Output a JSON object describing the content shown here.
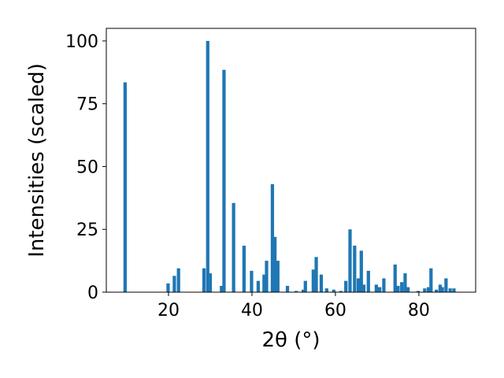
{
  "chart_data": {
    "type": "bar",
    "title": "",
    "xlabel": "2θ (°)",
    "ylabel": "Intensities (scaled)",
    "xlim": [
      5.1,
      93.6
    ],
    "ylim": [
      0,
      105
    ],
    "x_ticks": [
      20,
      40,
      60,
      80
    ],
    "y_ticks": [
      0,
      25,
      50,
      75,
      100
    ],
    "grid": false,
    "bar_color": "#1f77b4",
    "bar_width": 0.8,
    "series": [
      {
        "x": [
          9.6,
          19.9,
          21.4,
          22.4,
          28.5,
          29.4,
          30.0,
          32.7,
          33.3,
          35.6,
          38.1,
          39.9,
          41.5,
          42.9,
          43.5,
          44.9,
          45.5,
          46.2,
          48.5,
          50.6,
          52.3,
          52.8,
          54.7,
          55.4,
          56.6,
          57.9,
          59.6,
          61.3,
          62.5,
          63.5,
          64.6,
          65.5,
          66.2,
          66.8,
          67.9,
          69.8,
          70.6,
          71.6,
          74.3,
          75.0,
          75.9,
          76.7,
          77.4,
          79.8,
          81.4,
          82.3,
          82.9,
          84.2,
          85.1,
          85.6,
          86.5,
          87.5,
          88.4
        ],
        "values": [
          83.5,
          3.5,
          6.5,
          9.5,
          9.5,
          100,
          7.5,
          2.5,
          88.5,
          35.5,
          18.5,
          8.5,
          4.5,
          7.0,
          12.5,
          43.0,
          22.0,
          12.5,
          2.5,
          0.5,
          1.0,
          4.5,
          9.0,
          14.0,
          7.0,
          1.5,
          1.0,
          0.5,
          4.5,
          25.0,
          18.5,
          5.5,
          16.5,
          3.0,
          8.5,
          3.0,
          2.0,
          5.5,
          11.0,
          2.5,
          4.0,
          7.5,
          2.0,
          0.5,
          1.5,
          2.0,
          9.5,
          1.0,
          3.0,
          2.0,
          5.5,
          1.5,
          1.5
        ]
      }
    ]
  }
}
